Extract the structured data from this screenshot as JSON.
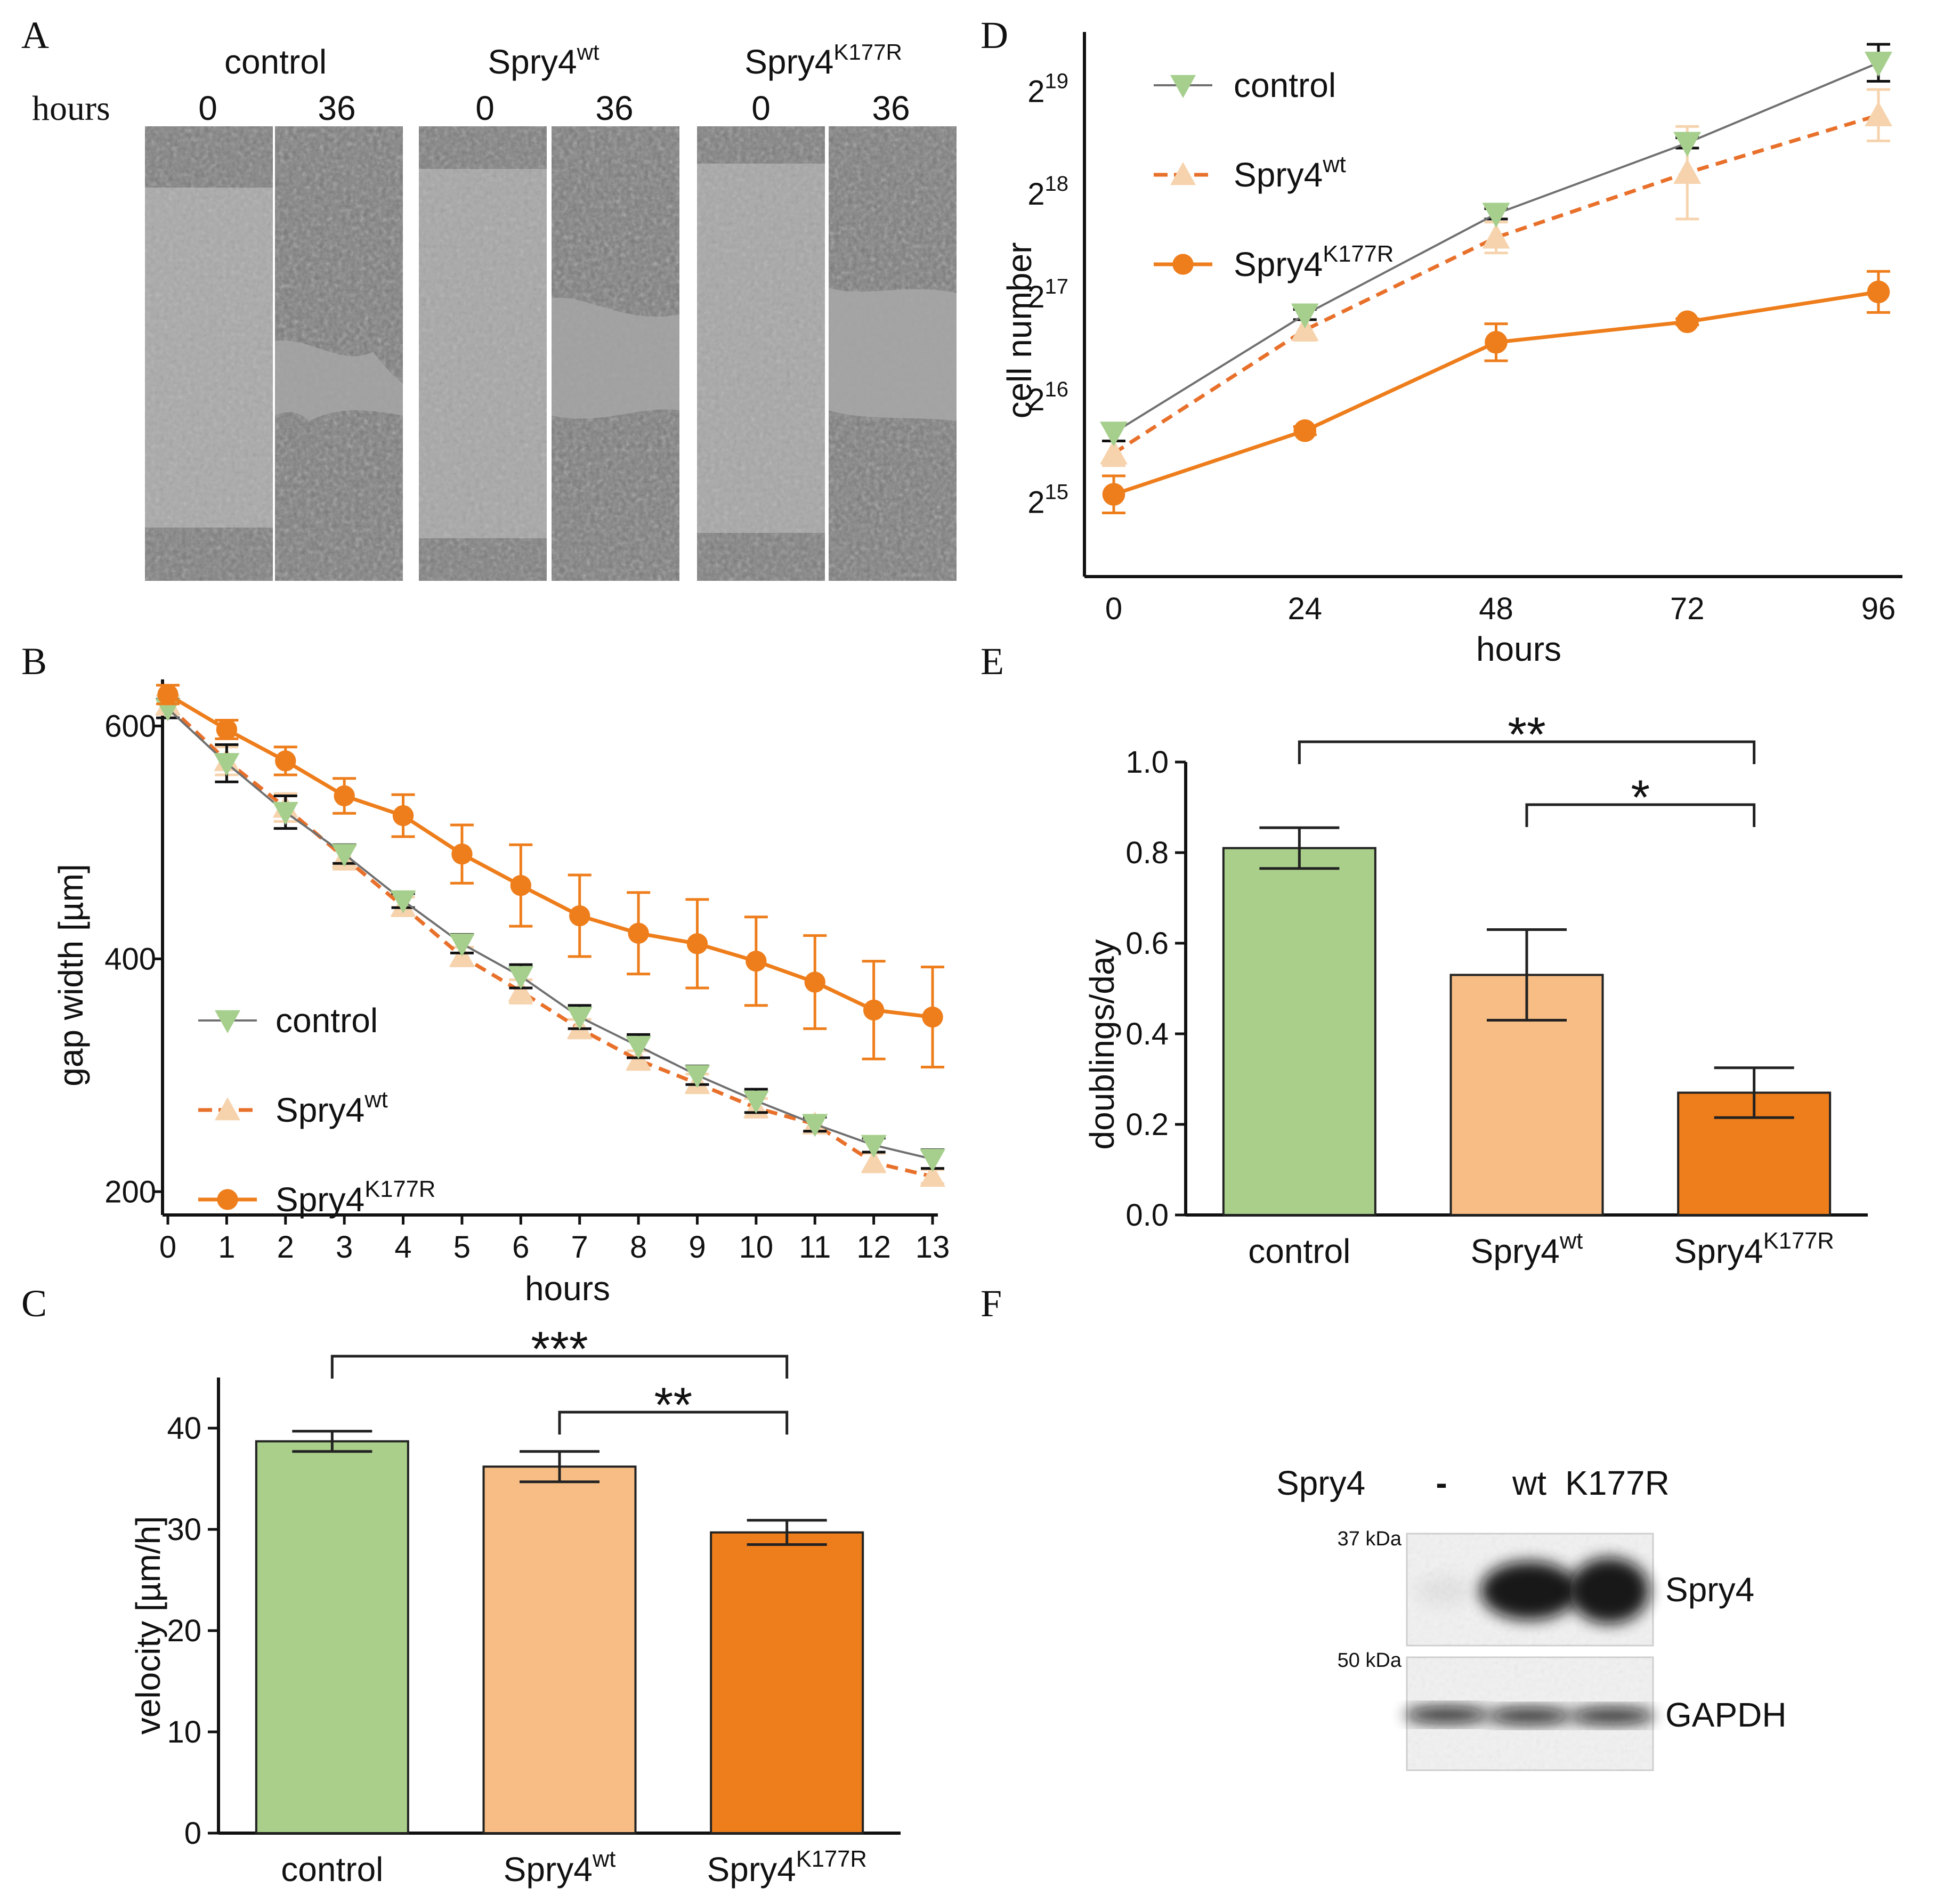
{
  "colors": {
    "control_line": "#707070",
    "control_marker": "#a6cf8d",
    "wt_line": "#e8702a",
    "wt_marker": "#f6d3ad",
    "k177r": "#ee7d1b",
    "bar_control": "#a9cf8a",
    "bar_wt": "#f7bd84",
    "bar_k177r": "#ee7d1b"
  },
  "panel_letters": [
    "A",
    "B",
    "C",
    "D",
    "E",
    "F"
  ],
  "panel_a": {
    "groups": [
      {
        "name": "control",
        "sup": ""
      },
      {
        "name": "Spry4",
        "sup": "wt"
      },
      {
        "name": "Spry4",
        "sup": "K177R"
      }
    ],
    "hours_label": "hours",
    "times": [
      "0",
      "36"
    ]
  },
  "panel_f": {
    "header_label": "Spry4",
    "lanes": [
      "-",
      "wt",
      "K177R"
    ],
    "marker_top": "37 kDa",
    "marker_bottom": "50 kDa",
    "band_top": "Spry4",
    "band_bottom": "GAPDH",
    "band_intensity_top": [
      0.05,
      0.95,
      0.95
    ],
    "band_intensity_bottom": [
      0.9,
      0.9,
      0.9
    ]
  },
  "chart_data": [
    {
      "id": "B",
      "type": "line",
      "title": "",
      "xlabel": "hours",
      "ylabel": "gap width [µm]",
      "xlim": [
        0,
        13
      ],
      "ylim": [
        180,
        640
      ],
      "xticks": [
        "0",
        "1",
        "2",
        "3",
        "4",
        "5",
        "6",
        "7",
        "8",
        "9",
        "10",
        "11",
        "12",
        "13"
      ],
      "yticks": [
        "200",
        "400",
        "600"
      ],
      "x": [
        0,
        1,
        2,
        3,
        4,
        5,
        6,
        7,
        8,
        9,
        10,
        11,
        12,
        13
      ],
      "legend_position": "center-left",
      "series": [
        {
          "name": "control",
          "sup": "",
          "marker": "triangle-down",
          "values": [
            615,
            568,
            526,
            490,
            450,
            413,
            385,
            350,
            325,
            300,
            278,
            258,
            240,
            228
          ],
          "err": [
            8,
            16,
            14,
            8,
            6,
            8,
            10,
            10,
            10,
            8,
            10,
            6,
            6,
            8
          ]
        },
        {
          "name": "Spry4",
          "sup": "wt",
          "marker": "triangle-up",
          "values": [
            618,
            570,
            530,
            487,
            445,
            402,
            372,
            340,
            313,
            293,
            272,
            258,
            225,
            213
          ],
          "err": [
            8,
            12,
            12,
            10,
            8,
            8,
            10,
            8,
            8,
            8,
            8,
            6,
            8,
            6
          ]
        },
        {
          "name": "Spry4",
          "sup": "K177R",
          "marker": "circle",
          "values": [
            627,
            597,
            570,
            540,
            523,
            490,
            463,
            437,
            422,
            413,
            398,
            380,
            356,
            350
          ],
          "err": [
            8,
            8,
            12,
            15,
            18,
            25,
            35,
            35,
            35,
            38,
            38,
            40,
            42,
            43
          ]
        }
      ]
    },
    {
      "id": "C",
      "type": "bar",
      "title": "",
      "xlabel": "",
      "ylabel": "velocity [µm/h]",
      "ylim": [
        0,
        45
      ],
      "yticks": [
        "0",
        "10",
        "20",
        "30",
        "40"
      ],
      "categories": [
        {
          "name": "control",
          "sup": ""
        },
        {
          "name": "Spry4",
          "sup": "wt"
        },
        {
          "name": "Spry4",
          "sup": "K177R"
        }
      ],
      "values": [
        38.7,
        36.2,
        29.7
      ],
      "err": [
        1.0,
        1.5,
        1.2
      ],
      "significance": [
        {
          "from": 0,
          "to": 2,
          "label": "***"
        },
        {
          "from": 1,
          "to": 2,
          "label": "**"
        }
      ]
    },
    {
      "id": "D",
      "type": "line",
      "title": "",
      "xlabel": "hours",
      "ylabel": "cell number",
      "yscale": "log2",
      "xlim": [
        0,
        96
      ],
      "ylim_log2": [
        14.2,
        19.5
      ],
      "xticks": [
        "0",
        "24",
        "48",
        "72",
        "96"
      ],
      "yticks": [
        {
          "base": "2",
          "exp": "15"
        },
        {
          "base": "2",
          "exp": "16"
        },
        {
          "base": "2",
          "exp": "17"
        },
        {
          "base": "2",
          "exp": "18"
        },
        {
          "base": "2",
          "exp": "19"
        }
      ],
      "x": [
        0,
        24,
        48,
        72,
        96
      ],
      "legend_position": "top-left",
      "series": [
        {
          "name": "control",
          "sup": "",
          "marker": "triangle-down",
          "log2_values": [
            15.6,
            16.75,
            17.73,
            18.42,
            19.2
          ],
          "err": [
            0.08,
            0.05,
            0.05,
            0.05,
            0.18
          ]
        },
        {
          "name": "Spry4",
          "sup": "wt",
          "marker": "triangle-up",
          "log2_values": [
            15.4,
            16.6,
            17.5,
            18.13,
            18.69
          ],
          "err": [
            0.12,
            0.1,
            0.15,
            0.45,
            0.25
          ]
        },
        {
          "name": "Spry4",
          "sup": "K177R",
          "marker": "circle",
          "log2_values": [
            15.0,
            15.62,
            16.48,
            16.68,
            16.97
          ],
          "err": [
            0.18,
            0.04,
            0.18,
            0.03,
            0.2
          ]
        }
      ]
    },
    {
      "id": "E",
      "type": "bar",
      "title": "",
      "xlabel": "",
      "ylabel": "doublings/day",
      "ylim": [
        0,
        1.0
      ],
      "yticks": [
        "0.0",
        "0.2",
        "0.4",
        "0.6",
        "0.8",
        "1.0"
      ],
      "categories": [
        {
          "name": "control",
          "sup": ""
        },
        {
          "name": "Spry4",
          "sup": "wt"
        },
        {
          "name": "Spry4",
          "sup": "K177R"
        }
      ],
      "values": [
        0.81,
        0.53,
        0.27
      ],
      "err": [
        0.045,
        0.1,
        0.055
      ],
      "significance": [
        {
          "from": 0,
          "to": 2,
          "label": "**"
        },
        {
          "from": 1,
          "to": 2,
          "label": "*"
        }
      ]
    }
  ]
}
